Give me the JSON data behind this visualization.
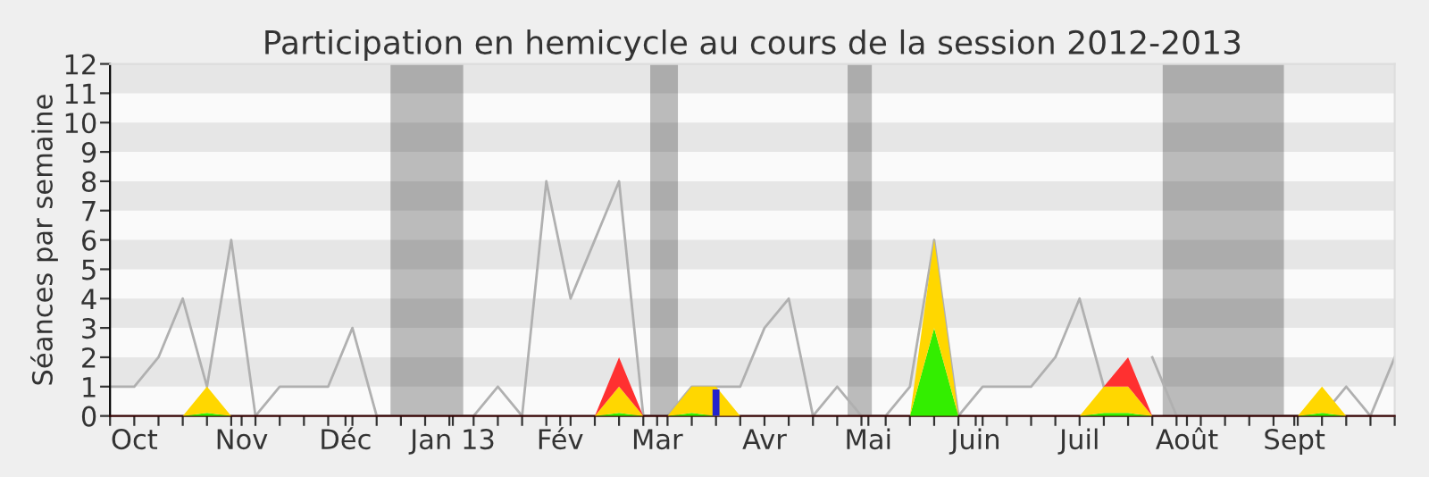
{
  "chart_data": {
    "type": "area",
    "title": "Participation en hemicycle au cours de la session 2012-2013",
    "ylabel": "Séances par semaine",
    "stacked": true,
    "x": [
      "2012-09-24",
      "2012-10-01",
      "2012-10-08",
      "2012-10-15",
      "2012-10-22",
      "2012-10-29",
      "2012-11-05",
      "2012-11-12",
      "2012-11-19",
      "2012-11-26",
      "2012-12-03",
      "2012-12-10",
      "2012-12-17",
      "2012-12-24",
      "2012-12-31",
      "2013-01-07",
      "2013-01-14",
      "2013-01-21",
      "2013-01-28",
      "2013-02-04",
      "2013-02-11",
      "2013-02-18",
      "2013-02-25",
      "2013-03-04",
      "2013-03-11",
      "2013-03-18",
      "2013-03-25",
      "2013-04-01",
      "2013-04-08",
      "2013-04-15",
      "2013-04-22",
      "2013-04-29",
      "2013-05-06",
      "2013-05-13",
      "2013-05-20",
      "2013-05-27",
      "2013-06-03",
      "2013-06-10",
      "2013-06-17",
      "2013-06-24",
      "2013-07-01",
      "2013-07-08",
      "2013-07-15",
      "2013-07-22",
      "2013-07-29",
      "2013-08-05",
      "2013-08-12",
      "2013-08-19",
      "2013-08-26",
      "2013-09-02",
      "2013-09-09",
      "2013-09-16",
      "2013-09-23",
      "2013-09-30"
    ],
    "xlim": [
      "2012-09-24",
      "2013-09-30"
    ],
    "ylim": [
      0,
      12
    ],
    "yticks": [
      0,
      1,
      2,
      3,
      4,
      5,
      6,
      7,
      8,
      9,
      10,
      11,
      12
    ],
    "xticks": [
      {
        "value": "2012-09-24",
        "label": null
      },
      {
        "value": "2012-10-08",
        "label": null
      },
      {
        "value": "2012-10-15",
        "label": null
      },
      {
        "value": "2012-10-22",
        "label": null
      },
      {
        "value": "2012-10-29",
        "label": null
      },
      {
        "value": "2012-11-05",
        "label": null
      },
      {
        "value": "2012-11-12",
        "label": null
      },
      {
        "value": "2012-11-19",
        "label": null
      },
      {
        "value": "2012-11-26",
        "label": null
      },
      {
        "value": "2012-12-03",
        "label": null
      },
      {
        "value": "2012-12-10",
        "label": null
      },
      {
        "value": "2012-12-17",
        "label": null
      },
      {
        "value": "2012-12-24",
        "label": null
      },
      {
        "value": "2012-12-31",
        "label": null
      },
      {
        "value": "2013-01-07",
        "label": null
      },
      {
        "value": "2013-01-14",
        "label": null
      },
      {
        "value": "2013-01-21",
        "label": null
      },
      {
        "value": "2013-01-28",
        "label": null
      },
      {
        "value": "2013-02-04",
        "label": null
      },
      {
        "value": "2013-02-11",
        "label": null
      },
      {
        "value": "2013-02-18",
        "label": null
      },
      {
        "value": "2013-02-25",
        "label": null
      },
      {
        "value": "2013-03-04",
        "label": null
      },
      {
        "value": "2013-03-11",
        "label": null
      },
      {
        "value": "2013-03-18",
        "label": null
      },
      {
        "value": "2013-03-25",
        "label": null
      },
      {
        "value": "2013-04-08",
        "label": null
      },
      {
        "value": "2013-04-15",
        "label": null
      },
      {
        "value": "2013-04-22",
        "label": null
      },
      {
        "value": "2013-04-29",
        "label": null
      },
      {
        "value": "2013-05-06",
        "label": null
      },
      {
        "value": "2013-05-13",
        "label": null
      },
      {
        "value": "2013-05-20",
        "label": null
      },
      {
        "value": "2013-05-27",
        "label": null
      },
      {
        "value": "2013-06-03",
        "label": null
      },
      {
        "value": "2013-06-10",
        "label": null
      },
      {
        "value": "2013-06-17",
        "label": null
      },
      {
        "value": "2013-06-24",
        "label": null
      },
      {
        "value": "2013-07-08",
        "label": null
      },
      {
        "value": "2013-07-15",
        "label": null
      },
      {
        "value": "2013-07-22",
        "label": null
      },
      {
        "value": "2013-07-29",
        "label": null
      },
      {
        "value": "2013-08-05",
        "label": null
      },
      {
        "value": "2013-08-12",
        "label": null
      },
      {
        "value": "2013-08-19",
        "label": null
      },
      {
        "value": "2013-08-26",
        "label": null
      },
      {
        "value": "2013-09-02",
        "label": null
      },
      {
        "value": "2013-09-09",
        "label": null
      },
      {
        "value": "2013-09-16",
        "label": null
      },
      {
        "value": "2013-09-23",
        "label": null
      },
      {
        "value": "2013-09-30",
        "label": null
      },
      {
        "value": "2012-10-01",
        "label": "Oct"
      },
      {
        "value": "2012-11-01",
        "label": "Nov"
      },
      {
        "value": "2012-12-01",
        "label": "Déc"
      },
      {
        "value": "2013-01-01",
        "label": "Jan 13"
      },
      {
        "value": "2013-02-01",
        "label": "Fév"
      },
      {
        "value": "2013-03-01",
        "label": "Mar"
      },
      {
        "value": "2013-04-01",
        "label": "Avr"
      },
      {
        "value": "2013-05-01",
        "label": "Mai"
      },
      {
        "value": "2013-06-01",
        "label": "Juin"
      },
      {
        "value": "2013-07-01",
        "label": "Juil"
      },
      {
        "value": "2013-08-01",
        "label": "Août"
      },
      {
        "value": "2013-09-01",
        "label": "Sept"
      }
    ],
    "bands": [
      {
        "axis": "y",
        "from": 1,
        "to": 2,
        "color": "#e6e6e6"
      },
      {
        "axis": "y",
        "from": 3,
        "to": 4,
        "color": "#e6e6e6"
      },
      {
        "axis": "y",
        "from": 5,
        "to": 6,
        "color": "#e6e6e6"
      },
      {
        "axis": "y",
        "from": 7,
        "to": 8,
        "color": "#e6e6e6"
      },
      {
        "axis": "y",
        "from": 9,
        "to": 10,
        "color": "#e6e6e6"
      },
      {
        "axis": "y",
        "from": 11,
        "to": 12,
        "color": "#e6e6e6"
      },
      {
        "axis": "x",
        "from": "2012-12-14",
        "to": "2013-01-04",
        "color": "#000000"
      },
      {
        "axis": "x",
        "from": "2013-02-27",
        "to": "2013-03-07",
        "color": "#000000"
      },
      {
        "axis": "x",
        "from": "2013-04-25",
        "to": "2013-05-02",
        "color": "#000000"
      },
      {
        "axis": "x",
        "from": "2013-07-25",
        "to": "2013-08-29",
        "color": "#000000"
      }
    ],
    "series": [
      {
        "type": "line",
        "color": "#b0b0b0",
        "values": [
          1,
          1,
          2,
          4,
          1,
          6,
          0,
          1,
          1,
          1,
          3,
          0,
          0,
          0,
          0,
          0,
          1,
          0,
          8,
          4,
          6,
          8,
          0,
          0,
          1,
          1,
          1,
          3,
          4,
          0,
          1,
          0,
          0,
          1,
          6,
          0,
          1,
          1,
          1,
          2,
          4,
          1,
          null,
          2,
          0,
          0,
          0,
          0,
          0,
          0,
          0,
          1,
          0,
          2
        ]
      },
      {
        "color": "#33ee00",
        "values": [
          0,
          0,
          0,
          0,
          0.1,
          0,
          0,
          0,
          0,
          0,
          0,
          0,
          0,
          0,
          0,
          0,
          0,
          0,
          0,
          0,
          0,
          0.1,
          0,
          0,
          0.1,
          0,
          0,
          0,
          0,
          0,
          0,
          0,
          0,
          0,
          3,
          0,
          0,
          0,
          0,
          0,
          0,
          0.1,
          0.1,
          0,
          0,
          0,
          0,
          0,
          0,
          0,
          0.1,
          0,
          0,
          0
        ]
      },
      {
        "color": "#ffd700",
        "values": [
          0,
          0,
          0,
          0,
          0.9,
          0,
          0,
          0,
          0,
          0,
          0,
          0,
          0,
          0,
          0,
          0,
          0,
          0,
          0,
          0,
          0,
          0.9,
          0,
          0,
          0.9,
          1,
          0,
          0,
          0,
          0,
          0,
          0,
          0,
          0,
          3,
          0,
          0,
          0,
          0,
          0,
          0,
          0.9,
          0.9,
          0,
          0,
          0,
          0,
          0,
          0,
          0,
          0.9,
          0,
          0,
          0
        ]
      },
      {
        "color": "#ff3030",
        "values": [
          null,
          null,
          null,
          null,
          null,
          null,
          null,
          null,
          null,
          null,
          null,
          null,
          null,
          null,
          null,
          null,
          null,
          null,
          null,
          null,
          0,
          1,
          0,
          null,
          null,
          null,
          null,
          null,
          null,
          null,
          null,
          null,
          null,
          null,
          null,
          null,
          null,
          null,
          null,
          null,
          null,
          0,
          1,
          0,
          null,
          null,
          null,
          null,
          null,
          null,
          null,
          null,
          null,
          null
        ]
      },
      {
        "type": "bar",
        "color": "#2222cc",
        "x": [
          "2013-03-18"
        ],
        "values": [
          0.9
        ]
      }
    ]
  }
}
